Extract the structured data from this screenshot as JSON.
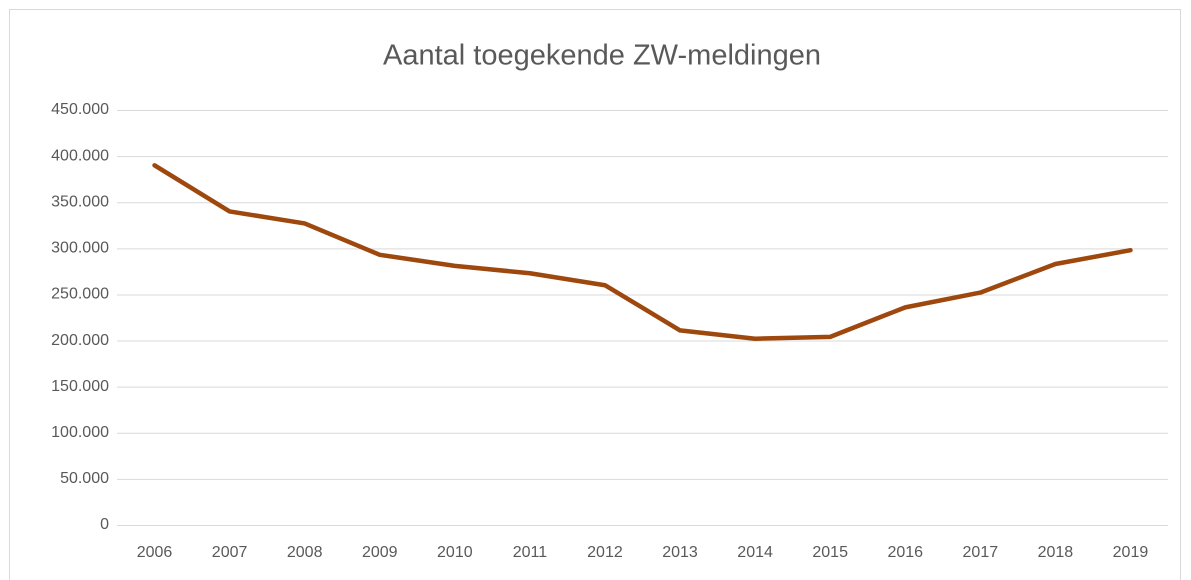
{
  "chart_data": {
    "type": "line",
    "title": "Aantal toegekende ZW-meldingen",
    "categories": [
      "2006",
      "2007",
      "2008",
      "2009",
      "2010",
      "2011",
      "2012",
      "2013",
      "2014",
      "2015",
      "2016",
      "2017",
      "2018",
      "2019"
    ],
    "series": [
      {
        "name": "ZW-meldingen",
        "color": "#9e480e",
        "values": [
          390000,
          340000,
          327000,
          293000,
          281000,
          273000,
          260000,
          211000,
          202000,
          204000,
          236000,
          252000,
          283000,
          298000
        ]
      }
    ],
    "ylim": [
      0,
      450000
    ],
    "yticks": [
      0,
      {
        "value": 50000,
        "label": "50.000"
      },
      {
        "value": 100000,
        "label": "100.000"
      },
      {
        "value": 150000,
        "label": "150.000"
      },
      {
        "value": 200000,
        "label": "200.000"
      },
      {
        "value": 250000,
        "label": "250.000"
      },
      {
        "value": 300000,
        "label": "300.000"
      },
      {
        "value": 350000,
        "label": "350.000"
      },
      {
        "value": 400000,
        "label": "400.000"
      },
      {
        "value": 450000,
        "label": "450.000"
      }
    ],
    "grid": true,
    "legend": false
  }
}
